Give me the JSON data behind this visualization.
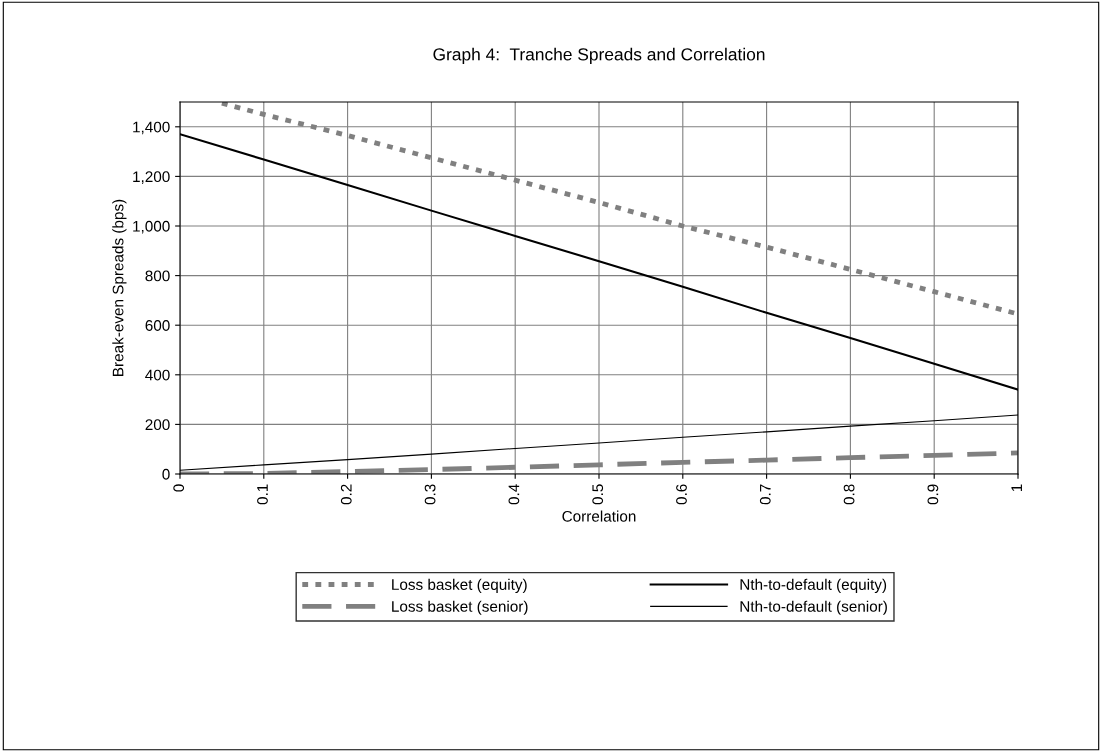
{
  "chart_data": {
    "type": "line",
    "title": "Graph 4:  Tranche Spreads and Correlation",
    "xlabel": "Correlation",
    "ylabel": "Break-even Spreads (bps)",
    "xlim": [
      0,
      1
    ],
    "xticks": [
      0,
      0.1,
      0.2,
      0.3,
      0.4,
      0.5,
      0.6,
      0.7,
      0.8,
      0.9,
      1
    ],
    "ylim": [
      0,
      1500
    ],
    "yticks": [
      0,
      200,
      400,
      600,
      800,
      {
        "value": 1000,
        "label": "1,000"
      },
      {
        "value": 1200,
        "label": "1,200"
      },
      {
        "value": 1400,
        "label": "1,400"
      }
    ],
    "grid": true,
    "legend": "bottom",
    "series": [
      {
        "name": "Loss basket (equity)",
        "color": "#808080",
        "line_style": "dotted",
        "x": [
          0.05,
          0.1,
          0.2,
          0.3,
          0.4,
          0.5,
          0.6,
          0.7,
          0.8,
          0.9,
          1
        ],
        "values": [
          1495,
          1450,
          1365,
          1275,
          1185,
          1095,
          1000,
          915,
          825,
          735,
          645
        ]
      },
      {
        "name": "Nth-to-default (equity)",
        "color": "#000000",
        "line_style": "solid",
        "x": [
          0,
          0.1,
          0.2,
          0.3,
          0.4,
          0.5,
          0.6,
          0.7,
          0.8,
          0.9,
          1
        ],
        "values": [
          1370,
          1268,
          1165,
          1062,
          960,
          858,
          755,
          650,
          548,
          445,
          340
        ]
      },
      {
        "name": "Loss basket (senior)",
        "color": "#808080",
        "line_style": "dashed",
        "x": [
          0,
          0.1,
          0.2,
          0.3,
          0.4,
          0.5,
          0.6,
          0.7,
          0.8,
          0.9,
          1
        ],
        "values": [
          0,
          2,
          10,
          18,
          27,
          37,
          47,
          56,
          66,
          75,
          85
        ]
      },
      {
        "name": "Nth-to-default (senior)",
        "color": "#000000",
        "line_style": "solid",
        "x": [
          0,
          0.1,
          0.2,
          0.3,
          0.4,
          0.5,
          0.6,
          0.7,
          0.8,
          0.9,
          1
        ],
        "values": [
          15,
          37,
          58,
          80,
          103,
          125,
          148,
          170,
          193,
          215,
          238
        ]
      }
    ]
  }
}
